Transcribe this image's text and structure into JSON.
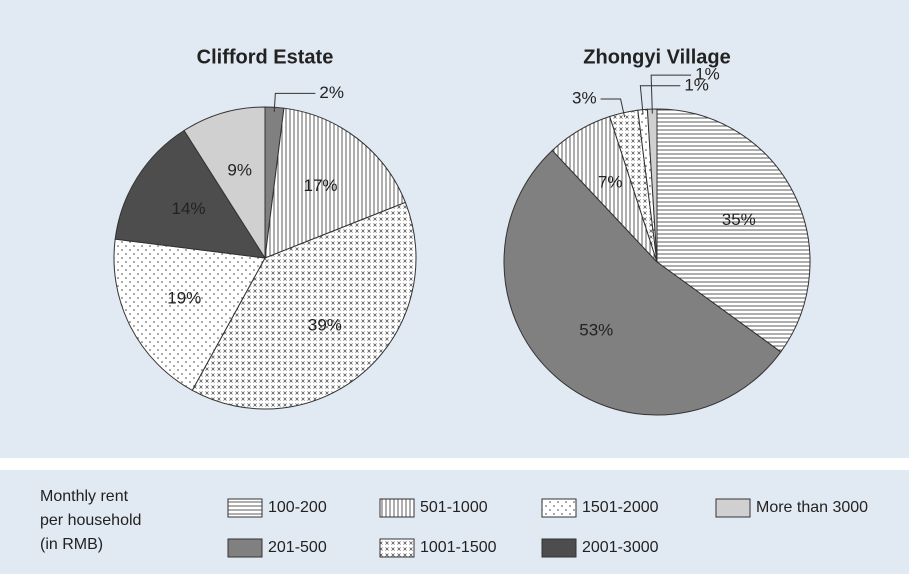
{
  "chart_data": [
    {
      "type": "pie",
      "title": "Clifford Estate",
      "categories": [
        "201-500",
        "501-1000",
        "1001-1500",
        "1501-2000",
        "2001-3000",
        "More than 3000"
      ],
      "values": [
        2,
        17,
        39,
        19,
        14,
        9
      ],
      "value_labels": [
        "2%",
        "17%",
        "39%",
        "19%",
        "14%",
        "9%"
      ]
    },
    {
      "type": "pie",
      "title": "Zhongyi Village",
      "categories": [
        "100-200",
        "201-500",
        "501-1000",
        "1001-1500",
        "1501-2000",
        "More than 3000"
      ],
      "values": [
        35,
        53,
        7,
        3,
        1,
        1
      ],
      "value_labels": [
        "35%",
        "53%",
        "7%",
        "3%",
        "1%",
        "1%"
      ]
    }
  ],
  "legend": {
    "title_lines": [
      "Monthly rent",
      "per household",
      "(in RMB)"
    ],
    "items": [
      {
        "name": "100-200",
        "fill": "url(#p-horiz)"
      },
      {
        "name": "201-500",
        "fill": "#808080"
      },
      {
        "name": "501-1000",
        "fill": "url(#p-vert)"
      },
      {
        "name": "1001-1500",
        "fill": "url(#p-cross)"
      },
      {
        "name": "1501-2000",
        "fill": "url(#p-dots)"
      },
      {
        "name": "2001-3000",
        "fill": "#4d4d4d"
      },
      {
        "name": "More than 3000",
        "fill": "#d0d0d0"
      }
    ]
  }
}
